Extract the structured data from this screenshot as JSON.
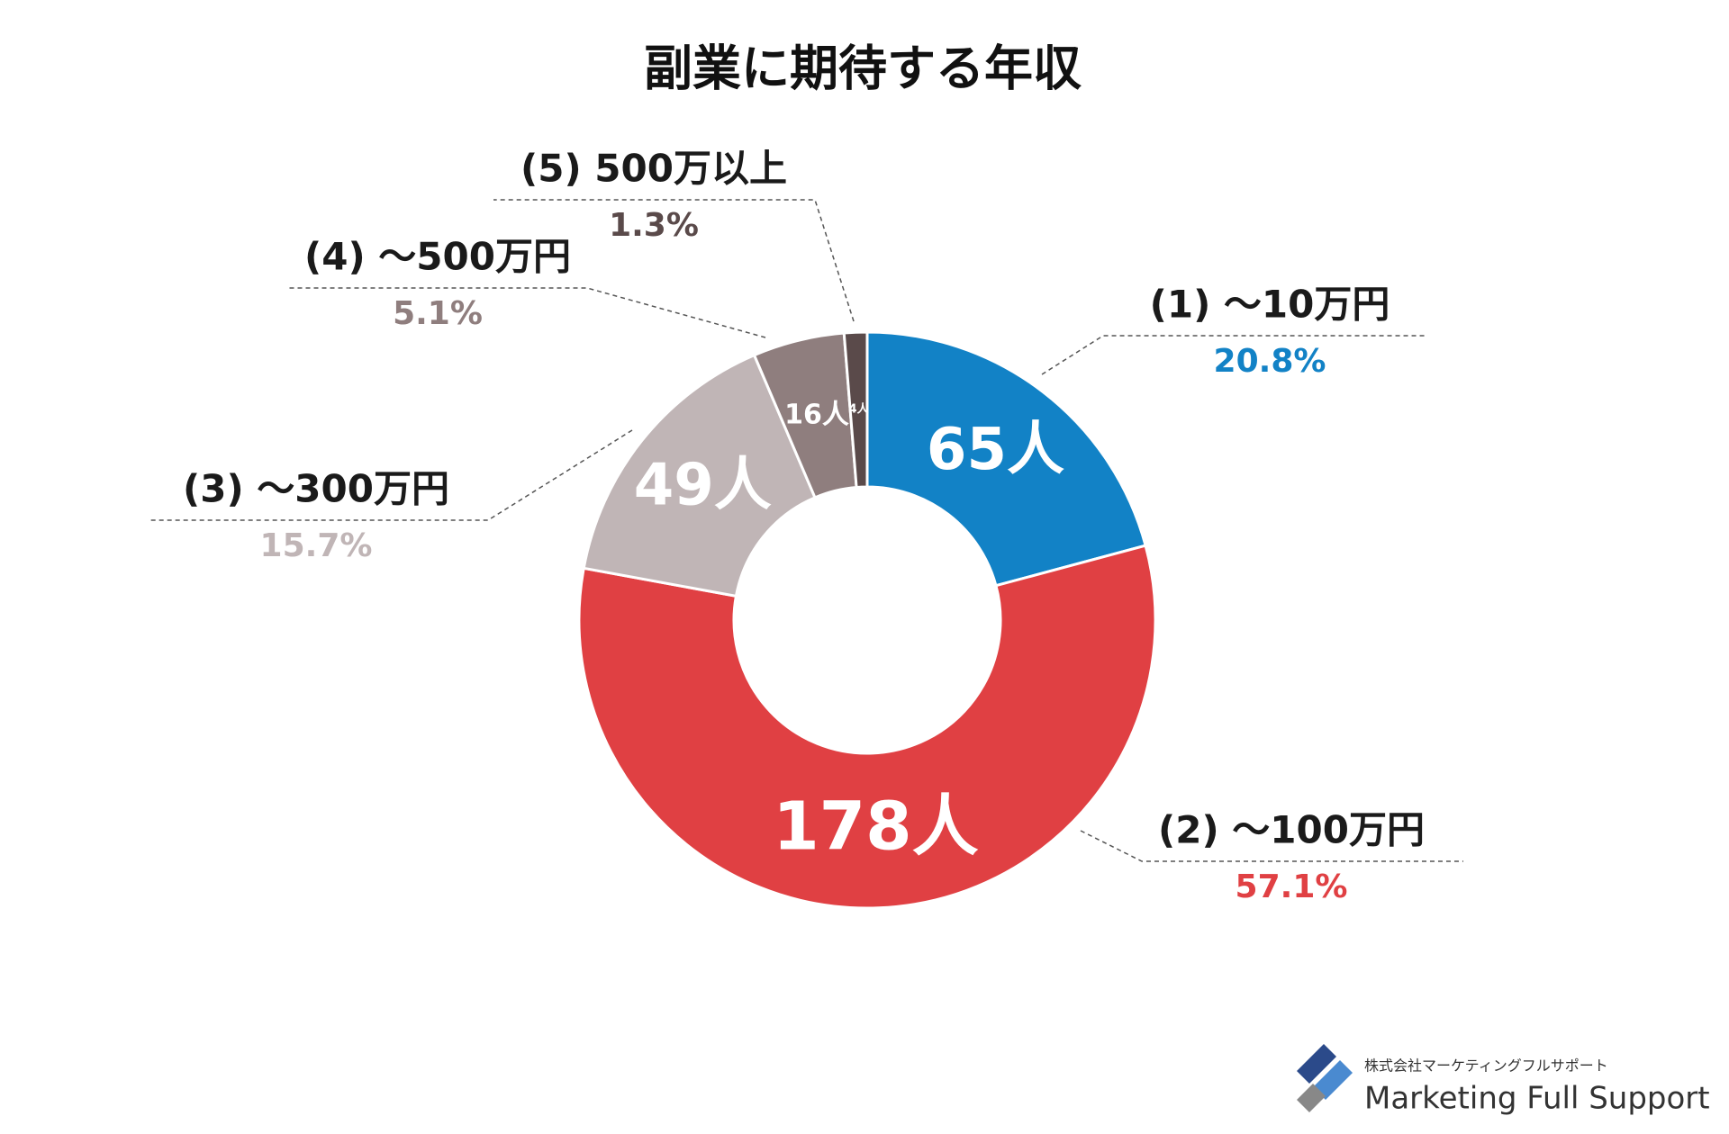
{
  "chart_data": {
    "type": "donut",
    "title": "副業に期待する年収",
    "categories": [
      "(1) ～10万円",
      "(2) ～100万円",
      "(3) ～300万円",
      "(4) ～500万円",
      "(5) 500万以上"
    ],
    "values": [
      65,
      178,
      49,
      16,
      4
    ],
    "value_labels": [
      "65人",
      "178人",
      "49人",
      "16人",
      "4人"
    ],
    "percentages": [
      20.8,
      57.1,
      15.7,
      5.1,
      1.3
    ],
    "percentage_labels": [
      "20.8%",
      "57.1%",
      "15.7%",
      "5.1%",
      "1.3%"
    ],
    "colors": [
      "#1282c6",
      "#e04043",
      "#c0b5b6",
      "#8f7e7e",
      "#5a4a4a"
    ]
  },
  "footer": {
    "company": "株式会社マーケティングフルサポート",
    "brand": "Marketing Full Support"
  }
}
